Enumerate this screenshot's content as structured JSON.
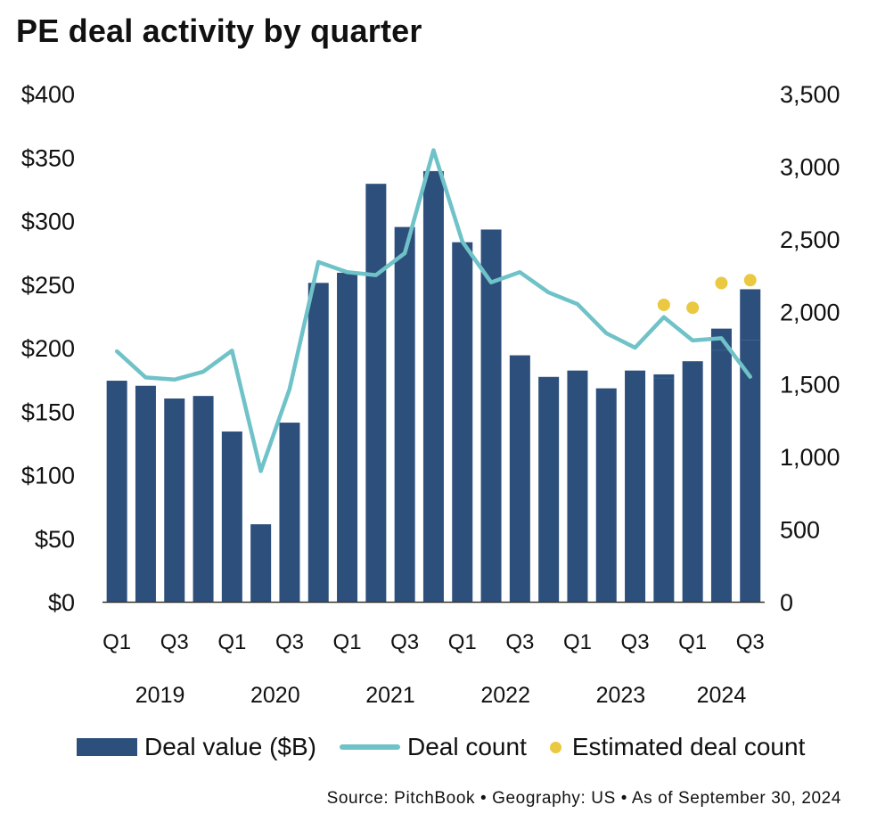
{
  "title": "PE deal activity by quarter",
  "legend": {
    "bar": "Deal value ($B)",
    "line": "Deal count",
    "dot": "Estimated deal count"
  },
  "source": "Source: PitchBook  •  Geography: US  •  As of September 30, 2024",
  "colors": {
    "bar": "#2d4f7c",
    "line": "#6ec2c8",
    "dot": "#eac840",
    "axis": "#333333"
  },
  "chart_data": {
    "type": "bar",
    "title": "PE deal activity by quarter",
    "categories": [
      "2019 Q1",
      "2019 Q2",
      "2019 Q3",
      "2019 Q4",
      "2020 Q1",
      "2020 Q2",
      "2020 Q3",
      "2020 Q4",
      "2021 Q1",
      "2021 Q2",
      "2021 Q3",
      "2021 Q4",
      "2022 Q1",
      "2022 Q2",
      "2022 Q3",
      "2022 Q4",
      "2023 Q1",
      "2023 Q2",
      "2023 Q3",
      "2023 Q4",
      "2024 Q1",
      "2024 Q2",
      "2024 Q3"
    ],
    "x_tick_labels": [
      "Q1",
      "",
      "Q3",
      "",
      "Q1",
      "",
      "Q3",
      "",
      "Q1",
      "",
      "Q3",
      "",
      "Q1",
      "",
      "Q3",
      "",
      "Q1",
      "",
      "Q3",
      "",
      "Q1",
      "",
      "Q3"
    ],
    "years": [
      {
        "label": "2019",
        "start": 0,
        "end": 3
      },
      {
        "label": "2020",
        "start": 4,
        "end": 7
      },
      {
        "label": "2021",
        "start": 8,
        "end": 11
      },
      {
        "label": "2022",
        "start": 12,
        "end": 15
      },
      {
        "label": "2023",
        "start": 16,
        "end": 19
      },
      {
        "label": "2024",
        "start": 20,
        "end": 22
      }
    ],
    "series": [
      {
        "name": "Deal value ($B)",
        "type": "bar",
        "axis": "left",
        "values": [
          174,
          170,
          160,
          162,
          134,
          61,
          141,
          251,
          259,
          329,
          295,
          339,
          283,
          293,
          194,
          177,
          182,
          168,
          182,
          179,
          189,
          215,
          246
        ],
        "estimated_values": [
          null,
          null,
          null,
          null,
          null,
          null,
          null,
          null,
          null,
          null,
          null,
          null,
          null,
          null,
          null,
          null,
          null,
          null,
          null,
          176,
          189,
          198,
          206
        ]
      },
      {
        "name": "Deal count",
        "type": "line",
        "axis": "right",
        "values": [
          1725,
          1545,
          1530,
          1585,
          1730,
          900,
          1465,
          2340,
          2270,
          2250,
          2400,
          3110,
          2480,
          2200,
          2270,
          2130,
          2050,
          1850,
          1750,
          1960,
          1800,
          1815,
          1550
        ]
      },
      {
        "name": "Estimated deal count",
        "type": "scatter",
        "axis": "right",
        "values": [
          null,
          null,
          null,
          null,
          null,
          null,
          null,
          null,
          null,
          null,
          null,
          null,
          null,
          null,
          null,
          null,
          null,
          null,
          null,
          2045,
          2025,
          2195,
          2215
        ]
      }
    ],
    "y_left": {
      "min": 0,
      "max": 400,
      "ticks": [
        0,
        50,
        100,
        150,
        200,
        250,
        300,
        350,
        400
      ],
      "tick_labels": [
        "$0",
        "$50",
        "$100",
        "$150",
        "$200",
        "$250",
        "$300",
        "$350",
        "$400"
      ]
    },
    "y_right": {
      "min": 0,
      "max": 3500,
      "ticks": [
        0,
        500,
        1000,
        1500,
        2000,
        2500,
        3000,
        3500
      ],
      "tick_labels": [
        "0",
        "500",
        "1,000",
        "1,500",
        "2,000",
        "2,500",
        "3,000",
        "3,500"
      ]
    },
    "grid": false,
    "legend_position": "bottom"
  }
}
